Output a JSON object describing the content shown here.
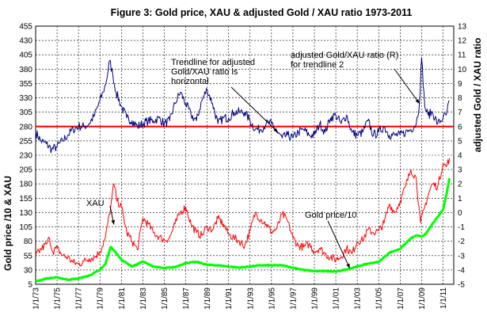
{
  "chart_data": {
    "type": "line",
    "title": "Figure 3:  Gold price,  XAU  &  adjusted Gold / XAU ratio    1973-2011",
    "ylabel_left": "Gold price /10  &  XAU",
    "ylabel_right": "adjusted Gold / XAU ratio",
    "ylim_left": [
      5,
      455
    ],
    "ylim_right": [
      -5,
      13
    ],
    "yticks_left": [
      5,
      30,
      55,
      80,
      105,
      130,
      155,
      180,
      205,
      230,
      255,
      280,
      305,
      330,
      355,
      380,
      405,
      430,
      455
    ],
    "yticks_right": [
      -5,
      -4,
      -3,
      -2,
      -1,
      0,
      1,
      2,
      3,
      4,
      5,
      6,
      7,
      8,
      9,
      10,
      11,
      12,
      13
    ],
    "xlim": [
      1973.0,
      2012.0
    ],
    "xtick_labels": [
      "1/1/73",
      "1/1/75",
      "1/1/77",
      "1/1/79",
      "1/1/81",
      "1/1/83",
      "1/1/85",
      "1/1/87",
      "1/1/89",
      "1/1/91",
      "1/1/93",
      "1/1/95",
      "1/1/97",
      "1/1/99",
      "1/1/01",
      "1/1/03",
      "1/1/05",
      "1/1/07",
      "1/1/09",
      "1/1/11"
    ],
    "grid": true,
    "reference_line": {
      "axis": "left",
      "value": 280,
      "color": "#ff0000"
    },
    "annotations": [
      {
        "lines": [
          "Trendline for adjusted",
          "Gold/XAU ratio is",
          "horizontal"
        ],
        "arrow_to": [
          1995.6,
          5.6
        ]
      },
      {
        "lines": [
          "adjusted Gold/XAU ratio (R)",
          "for trendline 2"
        ],
        "arrow_to": [
          2008.8,
          7.6
        ]
      },
      {
        "lines": [
          "XAU"
        ],
        "arrow_to": [
          1980.3,
          109
        ]
      },
      {
        "lines": [
          "Gold price/10"
        ],
        "arrow_to": [
          2002.3,
          33
        ]
      }
    ],
    "series": [
      {
        "axis": "right",
        "color": "#000080",
        "x": [
          1973.0,
          1973.5,
          1974.0,
          1974.5,
          1975.0,
          1975.5,
          1976.0,
          1976.5,
          1977.0,
          1977.5,
          1978.0,
          1978.5,
          1979.0,
          1979.3,
          1979.6,
          1979.9,
          1980.2,
          1980.5,
          1981.0,
          1981.5,
          1982.0,
          1982.5,
          1983.0,
          1983.5,
          1984.0,
          1984.5,
          1985.0,
          1985.5,
          1986.0,
          1986.5,
          1987.0,
          1987.5,
          1988.0,
          1988.5,
          1989.0,
          1989.5,
          1990.0,
          1990.5,
          1991.0,
          1991.5,
          1992.0,
          1992.5,
          1993.0,
          1993.5,
          1994.0,
          1994.5,
          1995.0,
          1995.5,
          1996.0,
          1996.5,
          1997.0,
          1997.5,
          1998.0,
          1998.5,
          1999.0,
          1999.5,
          2000.0,
          2000.5,
          2001.0,
          2001.5,
          2002.0,
          2002.5,
          2003.0,
          2003.5,
          2004.0,
          2004.5,
          2005.0,
          2005.5,
          2006.0,
          2006.5,
          2007.0,
          2007.5,
          2008.0,
          2008.5,
          2008.8,
          2009.0,
          2009.3,
          2009.6,
          2010.0,
          2010.5,
          2011.0,
          2011.3,
          2011.6
        ],
        "y": [
          5.6,
          5.0,
          4.8,
          4.4,
          4.6,
          5.0,
          5.4,
          5.8,
          6.0,
          6.0,
          6.2,
          6.8,
          7.8,
          8.4,
          9.2,
          10.6,
          9.6,
          8.4,
          7.4,
          6.6,
          6.4,
          6.0,
          6.2,
          6.4,
          6.4,
          6.6,
          6.2,
          6.4,
          7.6,
          8.4,
          7.6,
          6.8,
          6.4,
          7.8,
          8.6,
          7.6,
          6.2,
          6.6,
          6.6,
          7.0,
          7.0,
          7.0,
          6.4,
          5.8,
          5.8,
          6.2,
          6.2,
          5.6,
          5.2,
          5.4,
          5.2,
          5.6,
          5.8,
          5.4,
          5.4,
          6.2,
          5.6,
          6.6,
          6.8,
          6.2,
          6.8,
          5.6,
          5.4,
          5.6,
          6.4,
          5.4,
          5.6,
          6.0,
          5.4,
          5.4,
          5.4,
          5.6,
          5.8,
          6.2,
          7.6,
          10.8,
          7.4,
          6.8,
          7.0,
          6.2,
          6.6,
          6.8,
          7.8
        ]
      },
      {
        "axis": "left",
        "color": "#ff0000",
        "x": [
          1973.0,
          1973.5,
          1974.0,
          1974.3,
          1974.6,
          1975.0,
          1975.5,
          1976.0,
          1976.5,
          1977.0,
          1977.5,
          1978.0,
          1978.5,
          1979.0,
          1979.5,
          1980.0,
          1980.3,
          1980.6,
          1981.0,
          1981.5,
          1982.0,
          1982.5,
          1983.0,
          1983.5,
          1984.0,
          1984.5,
          1985.0,
          1985.5,
          1986.0,
          1986.5,
          1987.0,
          1987.5,
          1988.0,
          1988.5,
          1989.0,
          1989.5,
          1990.0,
          1990.5,
          1991.0,
          1991.5,
          1992.0,
          1992.5,
          1993.0,
          1993.5,
          1994.0,
          1994.5,
          1995.0,
          1995.5,
          1996.0,
          1996.5,
          1997.0,
          1997.5,
          1998.0,
          1998.5,
          1999.0,
          1999.5,
          2000.0,
          2000.5,
          2001.0,
          2001.5,
          2002.0,
          2002.5,
          2003.0,
          2003.5,
          2004.0,
          2004.5,
          2005.0,
          2005.5,
          2006.0,
          2006.5,
          2007.0,
          2007.5,
          2008.0,
          2008.5,
          2008.9,
          2009.3,
          2009.6,
          2010.0,
          2010.5,
          2011.0,
          2011.3,
          2011.6
        ],
        "y": [
          55,
          66,
          75,
          85,
          62,
          68,
          55,
          52,
          43,
          40,
          45,
          50,
          52,
          62,
          85,
          140,
          180,
          150,
          140,
          95,
          80,
          65,
          120,
          110,
          95,
          88,
          82,
          86,
          110,
          130,
          140,
          110,
          95,
          90,
          105,
          100,
          120,
          110,
          92,
          86,
          80,
          72,
          98,
          130,
          118,
          110,
          96,
          102,
          128,
          115,
          86,
          72,
          70,
          75,
          62,
          68,
          58,
          52,
          48,
          53,
          68,
          58,
          80,
          82,
          100,
          95,
          98,
          112,
          145,
          130,
          150,
          175,
          205,
          190,
          112,
          140,
          160,
          180,
          175,
          215,
          210,
          225
        ]
      },
      {
        "axis": "left",
        "color": "#00ff00",
        "x": [
          1973.0,
          1974.0,
          1975.0,
          1976.0,
          1977.0,
          1978.0,
          1979.0,
          1979.5,
          1980.0,
          1980.5,
          1981.0,
          1981.5,
          1982.0,
          1982.5,
          1983.0,
          1983.5,
          1984.0,
          1985.0,
          1986.0,
          1987.0,
          1988.0,
          1989.0,
          1990.0,
          1991.0,
          1992.0,
          1993.0,
          1994.0,
          1995.0,
          1996.0,
          1997.0,
          1998.0,
          1999.0,
          2000.0,
          2001.0,
          2002.0,
          2003.0,
          2004.0,
          2005.0,
          2006.0,
          2007.0,
          2008.0,
          2008.5,
          2009.0,
          2009.5,
          2010.0,
          2010.5,
          2011.0,
          2011.3,
          2011.6
        ],
        "y": [
          10,
          15,
          17,
          13,
          15,
          20,
          30,
          40,
          70,
          60,
          48,
          42,
          36,
          40,
          45,
          40,
          36,
          33,
          35,
          42,
          44,
          39,
          38,
          36,
          34,
          36,
          38,
          38,
          38,
          34,
          30,
          28,
          28,
          27,
          31,
          36,
          41,
          44,
          60,
          67,
          85,
          90,
          88,
          95,
          110,
          122,
          135,
          160,
          190
        ]
      }
    ]
  }
}
